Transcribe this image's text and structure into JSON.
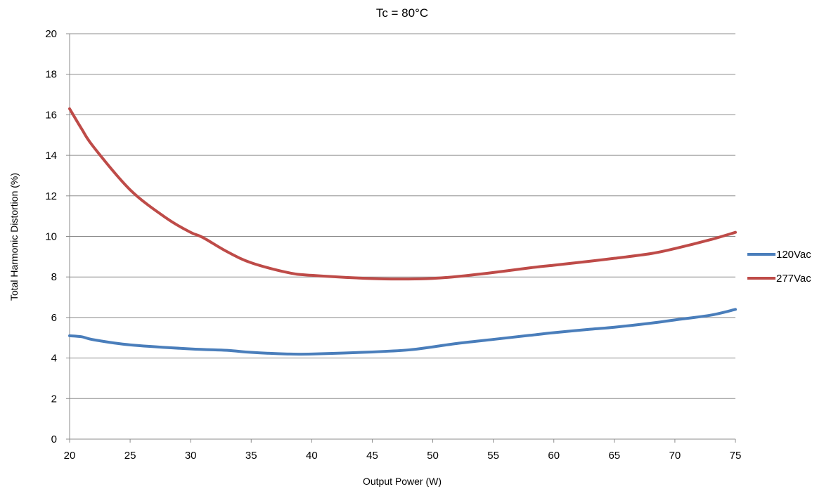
{
  "chart_data": {
    "type": "line",
    "title": "Tc = 80°C",
    "xlabel": "Output Power (W)",
    "ylabel": "Total Harmonic Distortion (%)",
    "xlim": [
      20,
      75
    ],
    "ylim": [
      0,
      20
    ],
    "xticks": [
      20,
      25,
      30,
      35,
      40,
      45,
      50,
      55,
      60,
      65,
      70,
      75
    ],
    "yticks": [
      0,
      2,
      4,
      6,
      8,
      10,
      12,
      14,
      16,
      18,
      20
    ],
    "grid": "horizontal",
    "legend_position": "right",
    "series": [
      {
        "name": "120Vac",
        "color": "#4a7ebb",
        "x": [
          20,
          21,
          22,
          25,
          30,
          33,
          35,
          38,
          40,
          45,
          48,
          50,
          52,
          55,
          58,
          60,
          63,
          65,
          68,
          70,
          73,
          75
        ],
        "y": [
          5.1,
          5.05,
          4.9,
          4.65,
          4.45,
          4.38,
          4.28,
          4.2,
          4.2,
          4.3,
          4.4,
          4.55,
          4.72,
          4.92,
          5.12,
          5.25,
          5.42,
          5.52,
          5.72,
          5.88,
          6.12,
          6.4
        ]
      },
      {
        "name": "277Vac",
        "color": "#be4b48",
        "x": [
          20,
          21,
          22,
          25,
          28,
          30,
          31,
          33,
          35,
          38,
          40,
          45,
          48,
          50,
          52,
          55,
          58,
          60,
          63,
          65,
          68,
          70,
          73,
          75
        ],
        "y": [
          16.3,
          15.3,
          14.4,
          12.3,
          10.9,
          10.2,
          9.95,
          9.25,
          8.7,
          8.22,
          8.08,
          7.92,
          7.9,
          7.93,
          8.02,
          8.22,
          8.45,
          8.58,
          8.78,
          8.92,
          9.15,
          9.4,
          9.85,
          10.2
        ]
      }
    ]
  }
}
